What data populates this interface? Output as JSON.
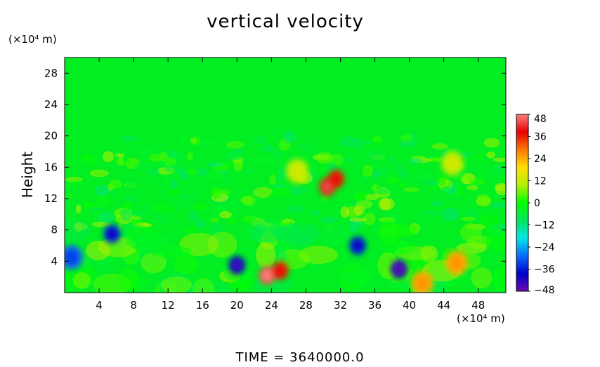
{
  "chart_data": {
    "type": "heatmap",
    "title": "vertical velocity",
    "ylabel": "Height",
    "y_unit": "(×10⁴ m)",
    "x_unit": "(×10⁴ m)",
    "footer": "TIME  =  3640000.0",
    "xlim": [
      0,
      51.2
    ],
    "ylim": [
      0,
      30
    ],
    "x_ticks": [
      4,
      8,
      12,
      16,
      20,
      24,
      28,
      32,
      36,
      40,
      44,
      48
    ],
    "y_ticks": [
      4,
      8,
      12,
      16,
      20,
      24,
      28
    ],
    "colorbar": {
      "min": -48,
      "max": 48,
      "ticks": [
        48,
        36,
        24,
        12,
        0,
        -12,
        -24,
        -36,
        -48
      ],
      "colors": [
        "#6a0dad",
        "#0000cc",
        "#0a6cff",
        "#00e6e6",
        "#00e65c",
        "#00ff00",
        "#b4f000",
        "#ffe000",
        "#ff7800",
        "#e60000",
        "#ff8080"
      ]
    },
    "field_description": "Background near 0 (green) above height 20; mixed small values (±12) between 8 and 20; notable features listed below.",
    "features": [
      {
        "x": 30.5,
        "y": 13.5,
        "value": 40
      },
      {
        "x": 31.5,
        "y": 14.5,
        "value": 36
      },
      {
        "x": 23.5,
        "y": 2.2,
        "value": 44
      },
      {
        "x": 25.0,
        "y": 2.8,
        "value": 36
      },
      {
        "x": 20.0,
        "y": 3.5,
        "value": -40
      },
      {
        "x": 38.8,
        "y": 3.0,
        "value": -42
      },
      {
        "x": 34.0,
        "y": 6.0,
        "value": -36
      },
      {
        "x": 5.5,
        "y": 7.5,
        "value": -36
      },
      {
        "x": 0.8,
        "y": 4.5,
        "value": -30
      },
      {
        "x": 45.5,
        "y": 3.8,
        "value": 24
      },
      {
        "x": 41.5,
        "y": 1.2,
        "value": 24
      },
      {
        "x": 27.0,
        "y": 15.5,
        "value": 12
      },
      {
        "x": 45.0,
        "y": 16.5,
        "value": 12
      }
    ]
  }
}
